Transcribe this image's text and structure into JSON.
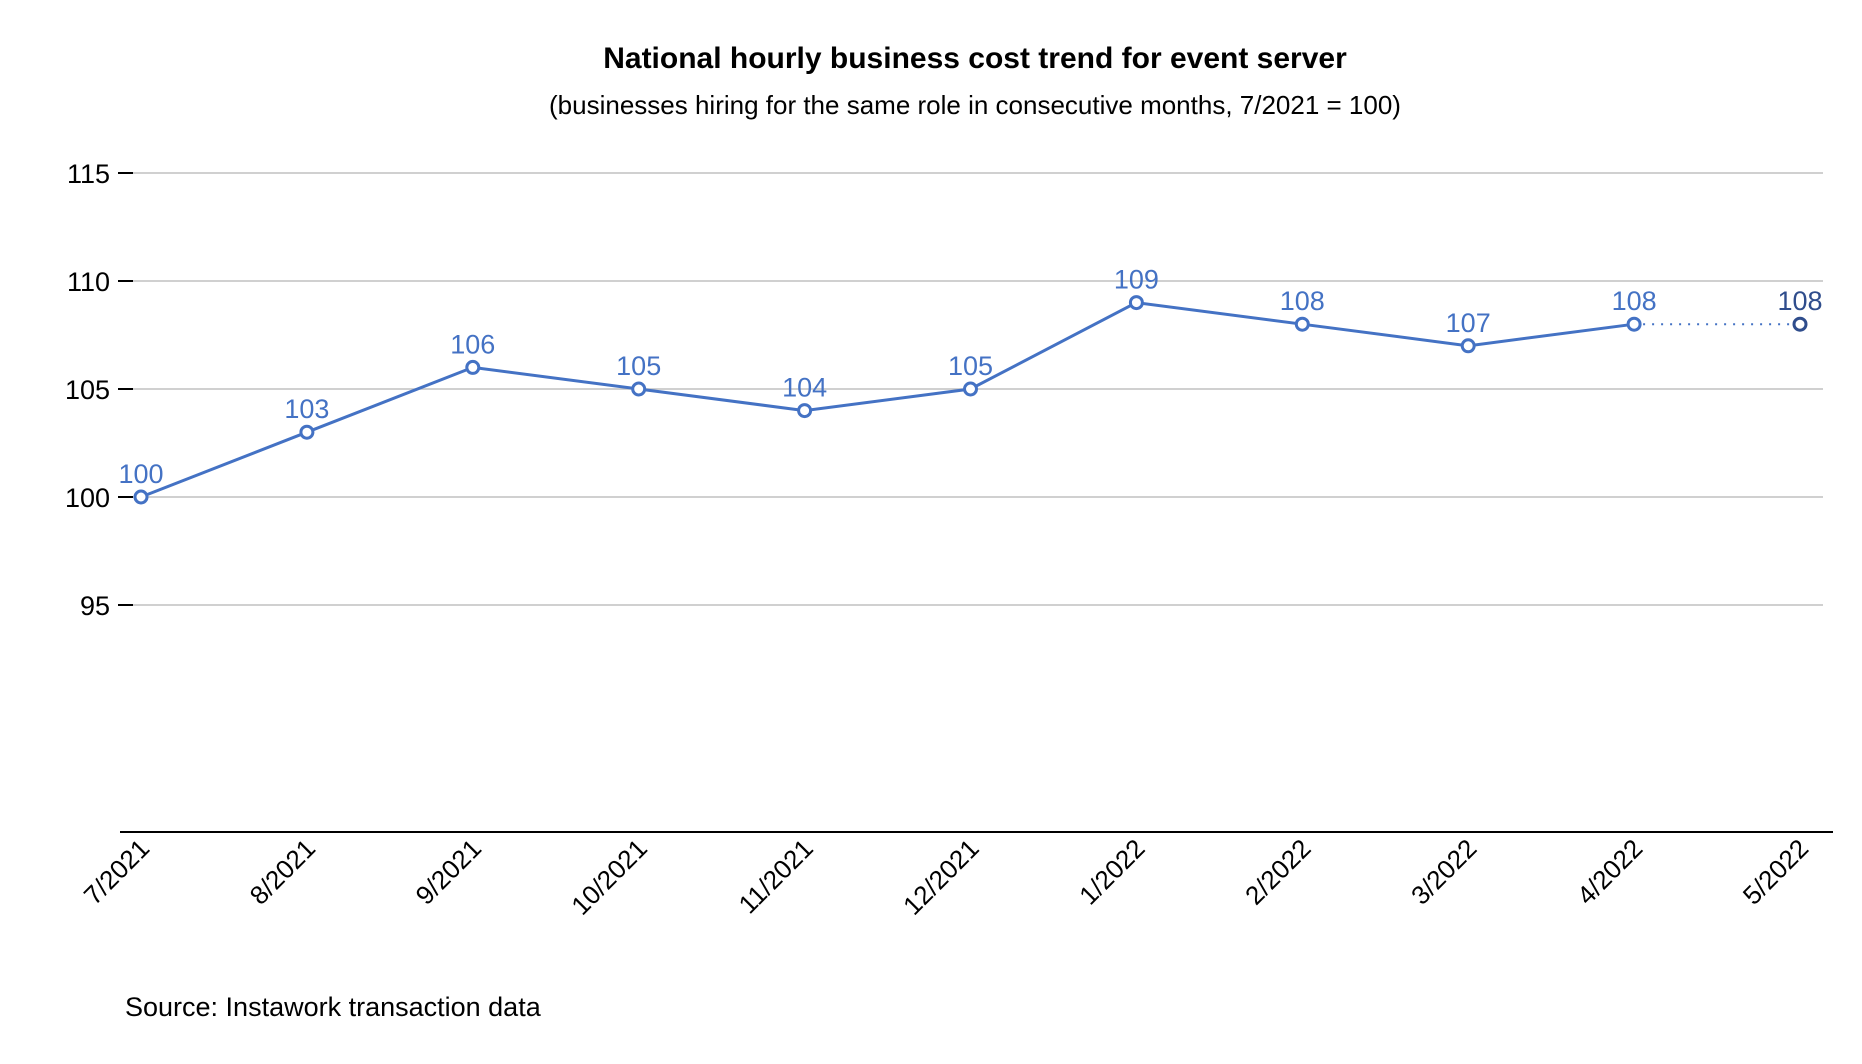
{
  "chart_data": {
    "type": "line",
    "title": "National hourly business cost trend for event server",
    "subtitle": "(businesses hiring for the same role in consecutive months, 7/2021 = 100)",
    "xlabel": "",
    "ylabel": "",
    "categories": [
      "7/2021",
      "8/2021",
      "9/2021",
      "10/2021",
      "11/2021",
      "12/2021",
      "1/2022",
      "2/2022",
      "3/2022",
      "4/2022",
      "5/2022"
    ],
    "series": [
      {
        "name": "Index",
        "values": [
          100,
          103,
          106,
          105,
          104,
          105,
          109,
          108,
          107,
          108,
          108
        ],
        "labels": [
          "100",
          "103",
          "106",
          "105",
          "104",
          "105",
          "109",
          "108",
          "107",
          "108",
          "108"
        ]
      }
    ],
    "ylim": [
      94.3,
      115
    ],
    "yticks": [
      95,
      100,
      105,
      110,
      115
    ],
    "ytick_labels": [
      "95",
      "100",
      "105",
      "110",
      "115"
    ],
    "grid": true,
    "last_segment_style": "dotted",
    "source": "Source: Instawork transaction data",
    "colors": {
      "line": "#4472c4",
      "last_point": "#2f4d8c",
      "grid": "#c0c0c0",
      "axis": "#000000"
    }
  }
}
